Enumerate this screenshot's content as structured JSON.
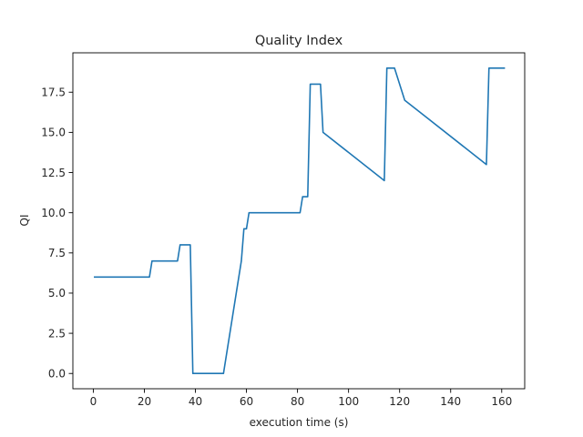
{
  "chart_data": {
    "type": "line",
    "title": "Quality Index",
    "xlabel": "execution time (s)",
    "ylabel": "QI",
    "xlim": [
      -8,
      169
    ],
    "ylim": [
      -0.95,
      19.95
    ],
    "x_ticks": [
      0,
      20,
      40,
      60,
      80,
      100,
      120,
      140,
      160
    ],
    "x_tick_labels": [
      "0",
      "20",
      "40",
      "60",
      "80",
      "100",
      "120",
      "140",
      "160"
    ],
    "y_ticks": [
      0,
      2.5,
      5,
      7.5,
      10,
      12.5,
      15,
      17.5
    ],
    "y_tick_labels": [
      "0.0",
      "2.5",
      "5.0",
      "7.5",
      "10.0",
      "12.5",
      "15.0",
      "17.5"
    ],
    "grid": false,
    "series": [
      {
        "color": "#1f77b4",
        "x": [
          0.5,
          22,
          23,
          33,
          34,
          38,
          39,
          51,
          58,
          59,
          60,
          61,
          81,
          82,
          84,
          85,
          89,
          90,
          114,
          115,
          118,
          122,
          154,
          155,
          161
        ],
        "y": [
          6,
          6,
          7,
          7,
          8,
          8,
          0,
          0,
          7,
          9,
          9,
          10,
          10,
          11,
          11,
          18,
          18,
          15,
          12,
          19,
          19,
          17,
          13,
          19,
          19
        ]
      }
    ]
  }
}
